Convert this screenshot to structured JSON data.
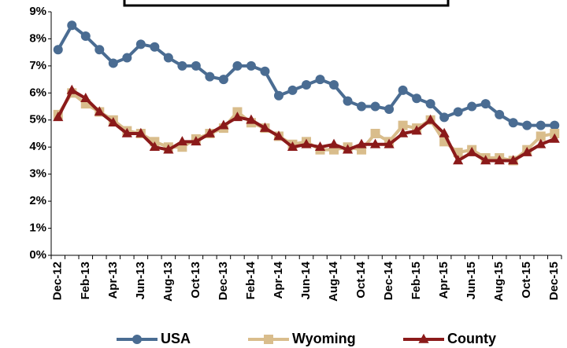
{
  "chart_data": {
    "type": "line",
    "categories": [
      "Dec-12",
      null,
      "Feb-13",
      null,
      "Apr-13",
      null,
      "Jun-13",
      null,
      "Aug-13",
      null,
      "Oct-13",
      null,
      "Dec-13",
      null,
      "Feb-14",
      null,
      "Apr-14",
      null,
      "Jun-14",
      null,
      "Aug-14",
      null,
      "Oct-14",
      null,
      "Dec-14",
      null,
      "Feb-15",
      null,
      "Apr-15",
      null,
      "Jun-15",
      null,
      "Aug-15",
      null,
      "Oct-15",
      null,
      "Dec-15"
    ],
    "series": [
      {
        "name": "USA",
        "color": "#4a6c92",
        "marker": "circle",
        "values": [
          7.6,
          8.5,
          8.1,
          7.6,
          7.1,
          7.3,
          7.8,
          7.7,
          7.3,
          7.0,
          7.0,
          6.6,
          6.5,
          7.0,
          7.0,
          6.8,
          5.9,
          6.1,
          6.3,
          6.5,
          6.3,
          5.7,
          5.5,
          5.5,
          5.4,
          6.1,
          5.8,
          5.6,
          5.1,
          5.3,
          5.5,
          5.6,
          5.2,
          4.9,
          4.8,
          4.8,
          4.8
        ]
      },
      {
        "name": "Wyoming",
        "color": "#d9bd8c",
        "marker": "square",
        "values": [
          5.2,
          6.0,
          5.6,
          5.3,
          5.0,
          4.6,
          4.5,
          4.2,
          4.0,
          4.0,
          4.3,
          4.5,
          4.7,
          5.3,
          4.9,
          4.7,
          4.4,
          4.1,
          4.2,
          3.9,
          3.9,
          4.0,
          3.9,
          4.5,
          4.2,
          4.8,
          4.7,
          5.0,
          4.2,
          3.8,
          3.9,
          3.6,
          3.6,
          3.5,
          3.9,
          4.4,
          4.5
        ]
      },
      {
        "name": "County",
        "color": "#8b1a1a",
        "marker": "triangle",
        "values": [
          5.1,
          6.1,
          5.8,
          5.3,
          4.9,
          4.5,
          4.5,
          4.0,
          3.9,
          4.2,
          4.2,
          4.5,
          4.8,
          5.1,
          5.0,
          4.7,
          4.4,
          4.0,
          4.1,
          4.0,
          4.1,
          3.9,
          4.1,
          4.1,
          4.1,
          4.5,
          4.6,
          5.0,
          4.5,
          3.5,
          3.8,
          3.5,
          3.5,
          3.5,
          3.8,
          4.1,
          4.3
        ]
      }
    ],
    "ylim": [
      0,
      9
    ],
    "yticks": [
      {
        "value": 0,
        "label": "0%"
      },
      {
        "value": 1,
        "label": "1%"
      },
      {
        "value": 2,
        "label": "2%"
      },
      {
        "value": 3,
        "label": "3%"
      },
      {
        "value": 4,
        "label": "4%"
      },
      {
        "value": 5,
        "label": "5%"
      },
      {
        "value": 6,
        "label": "6%"
      },
      {
        "value": 7,
        "label": "7%"
      },
      {
        "value": 8,
        "label": "8%"
      },
      {
        "value": 9,
        "label": "9%"
      }
    ],
    "grid": false,
    "legend": "bottom"
  }
}
